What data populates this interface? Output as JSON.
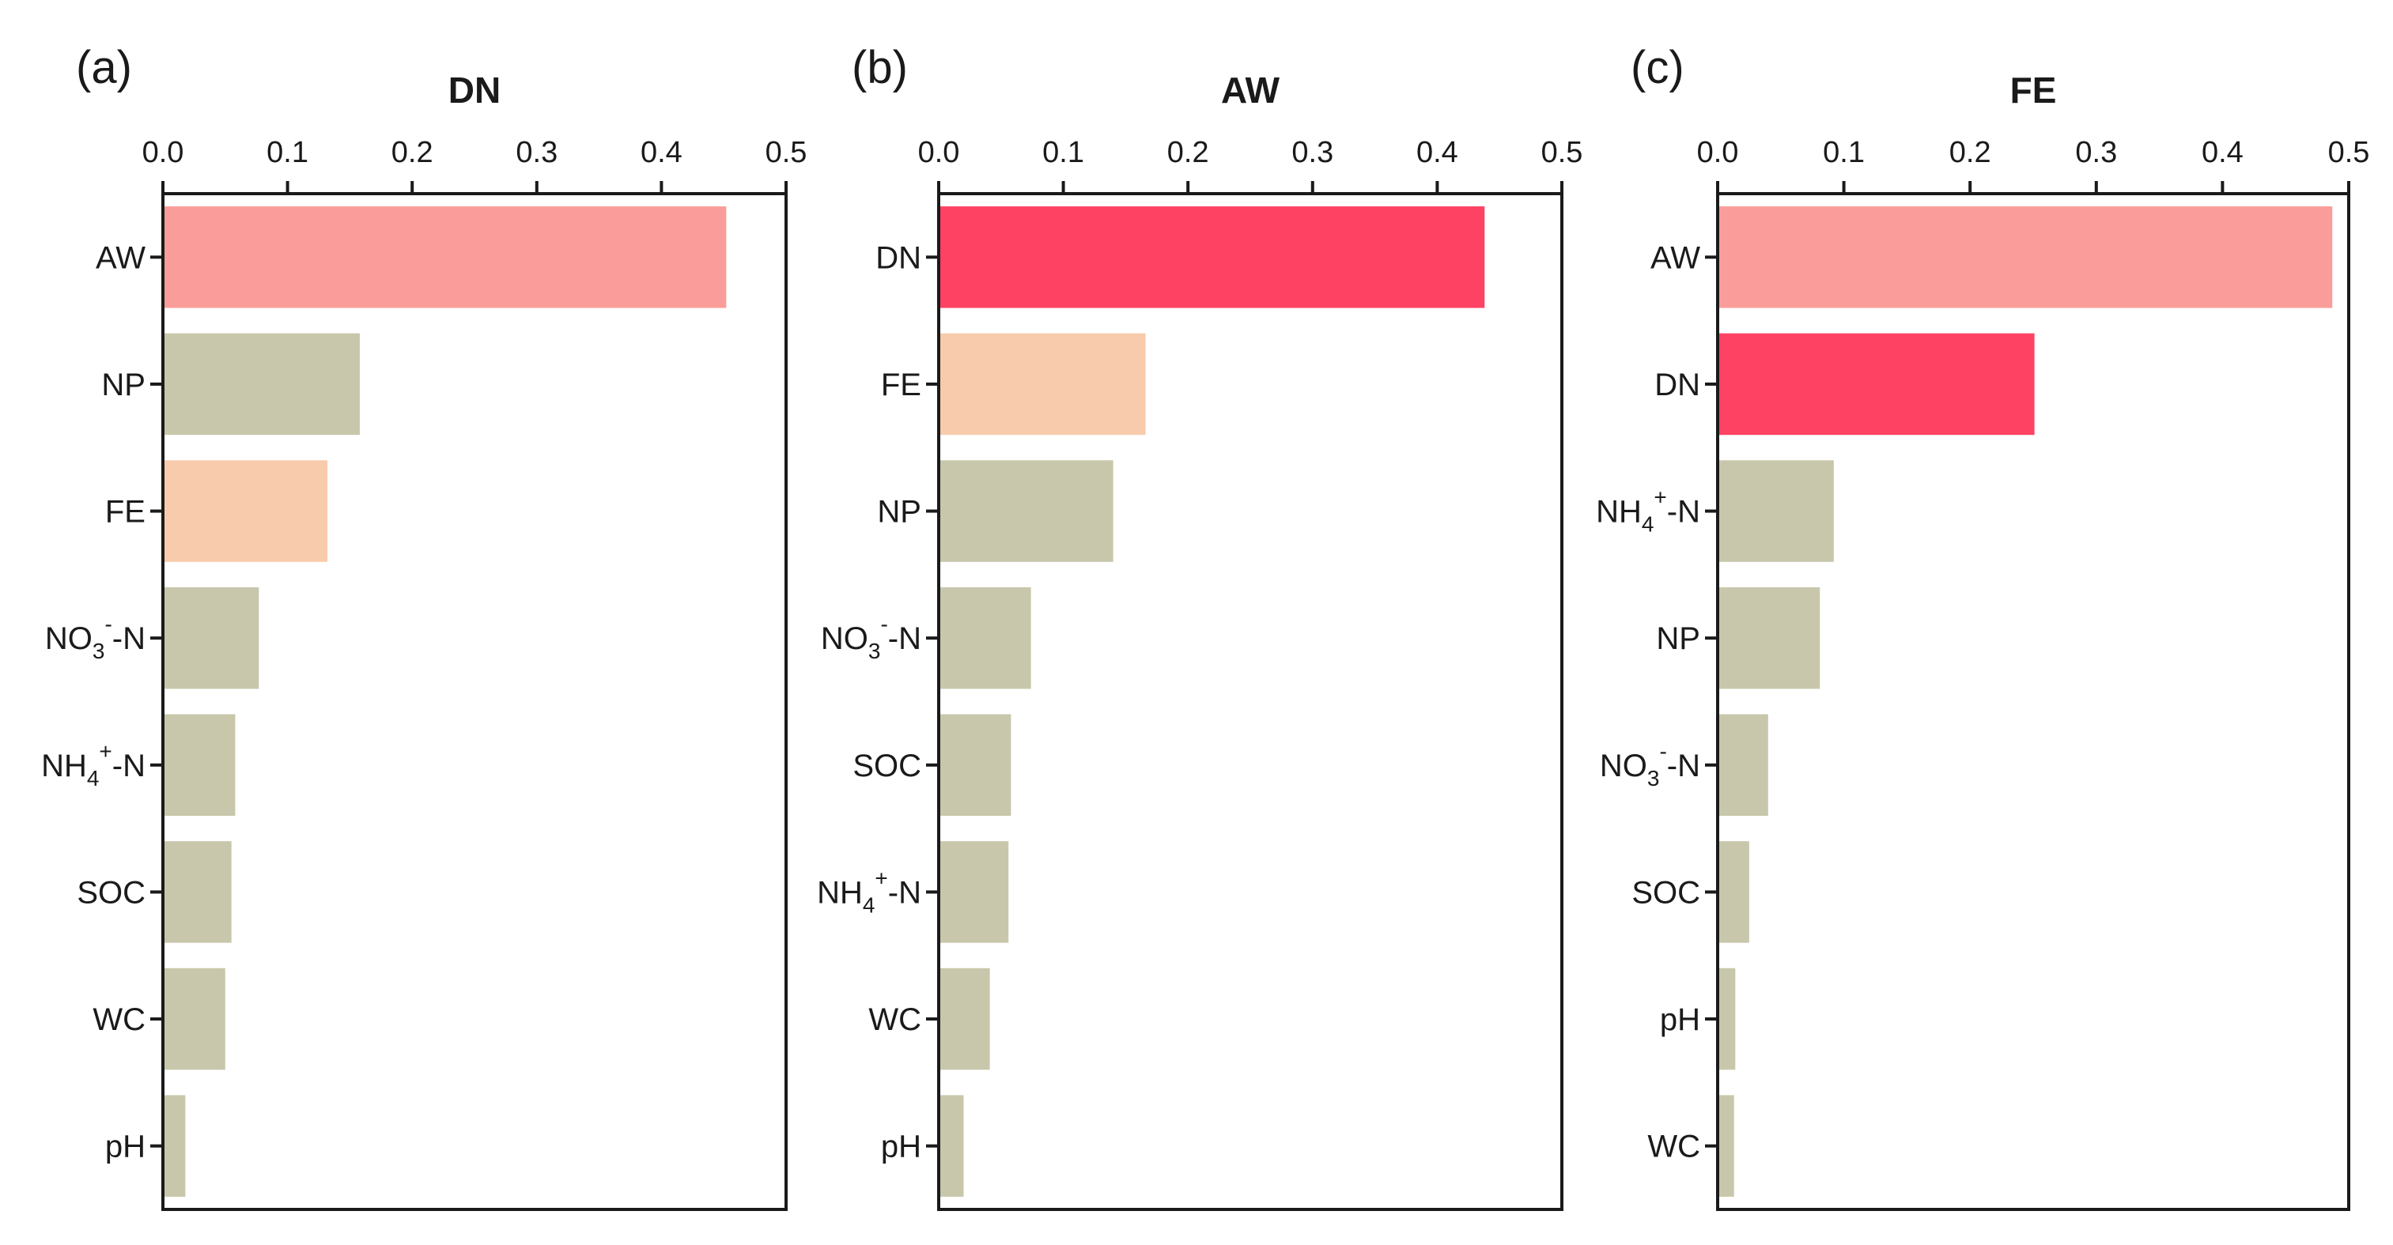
{
  "chart_data": [
    {
      "type": "bar",
      "orientation": "horizontal",
      "panel_label": "(a)",
      "title": "DN",
      "categories": [
        {
          "base": "AW"
        },
        {
          "base": "NP"
        },
        {
          "base": "FE"
        },
        {
          "base": "NO",
          "sub": "3",
          "sup": "-",
          "suffix": "-N"
        },
        {
          "base": "NH",
          "sub": "4",
          "sup": "+",
          "suffix": "-N"
        },
        {
          "base": "SOC"
        },
        {
          "base": "WC"
        },
        {
          "base": "pH"
        }
      ],
      "values": [
        0.452,
        0.158,
        0.132,
        0.077,
        0.058,
        0.055,
        0.05,
        0.018
      ],
      "colors": [
        "#fa9d9a",
        "#c8c7ab",
        "#f8cbac",
        "#c8c7ab",
        "#c8c7ab",
        "#c8c7ab",
        "#c8c7ab",
        "#c8c7ab"
      ],
      "xlim": [
        0,
        0.5
      ],
      "xticks": [
        "0.0",
        "0.1",
        "0.2",
        "0.3",
        "0.4",
        "0.5"
      ],
      "axis_position": "top",
      "grid": false
    },
    {
      "type": "bar",
      "orientation": "horizontal",
      "panel_label": "(b)",
      "title": "AW",
      "categories": [
        {
          "base": "DN"
        },
        {
          "base": "FE"
        },
        {
          "base": "NP"
        },
        {
          "base": "NO",
          "sub": "3",
          "sup": "-",
          "suffix": "-N"
        },
        {
          "base": "SOC"
        },
        {
          "base": "NH",
          "sub": "4",
          "sup": "+",
          "suffix": "-N"
        },
        {
          "base": "WC"
        },
        {
          "base": "pH"
        }
      ],
      "values": [
        0.438,
        0.166,
        0.14,
        0.074,
        0.058,
        0.056,
        0.041,
        0.02
      ],
      "colors": [
        "#fe4263",
        "#f8cbac",
        "#c8c7ab",
        "#c8c7ab",
        "#c8c7ab",
        "#c8c7ab",
        "#c8c7ab",
        "#c8c7ab"
      ],
      "xlim": [
        0,
        0.5
      ],
      "xticks": [
        "0.0",
        "0.1",
        "0.2",
        "0.3",
        "0.4",
        "0.5"
      ],
      "axis_position": "top",
      "grid": false
    },
    {
      "type": "bar",
      "orientation": "horizontal",
      "panel_label": "(c)",
      "title": "FE",
      "categories": [
        {
          "base": "AW"
        },
        {
          "base": "DN"
        },
        {
          "base": "NH",
          "sub": "4",
          "sup": "+",
          "suffix": "-N"
        },
        {
          "base": "NP"
        },
        {
          "base": "NO",
          "sub": "3",
          "sup": "-",
          "suffix": "-N"
        },
        {
          "base": "SOC"
        },
        {
          "base": "pH"
        },
        {
          "base": "WC"
        }
      ],
      "values": [
        0.487,
        0.251,
        0.092,
        0.081,
        0.04,
        0.025,
        0.014,
        0.013
      ],
      "colors": [
        "#fa9d9a",
        "#fe4263",
        "#c8c7ab",
        "#c8c7ab",
        "#c8c7ab",
        "#c8c7ab",
        "#c8c7ab",
        "#c8c7ab"
      ],
      "xlim": [
        0,
        0.5
      ],
      "xticks": [
        "0.0",
        "0.1",
        "0.2",
        "0.3",
        "0.4",
        "0.5"
      ],
      "axis_position": "top",
      "grid": false
    }
  ]
}
